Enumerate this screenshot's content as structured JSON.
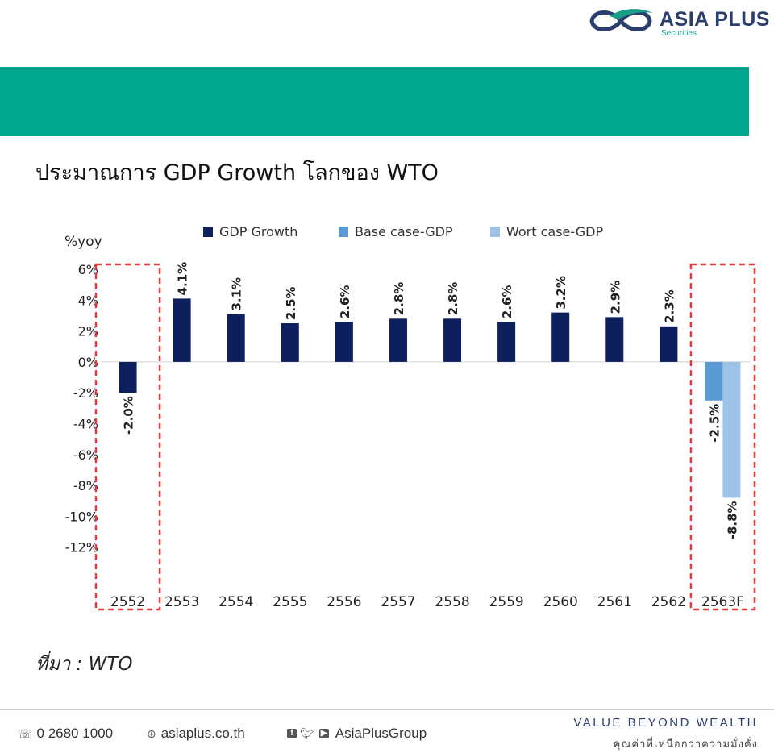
{
  "brand": {
    "name": "ASIA PLUS",
    "sub": "Securities",
    "band_color": "#00a78c",
    "navy": "#2c3e6e"
  },
  "title": "ประมาณการ GDP Growth โลกของ WTO",
  "source": "ที่มา : WTO",
  "footer": {
    "phone": "0 2680 1000",
    "website": "asiaplus.co.th",
    "social": "AsiaPlusGroup",
    "tagline": "VALUE BEYOND WEALTH",
    "tagline_sub": "คุณค่าที่เหนือกว่าความมั่งคั่ง"
  },
  "chart_data": {
    "type": "bar",
    "ylabel": "%yoy",
    "ylim": [
      -14,
      6
    ],
    "yticks": [
      6,
      4,
      2,
      0,
      -2,
      -4,
      -6,
      -8,
      -10,
      -12
    ],
    "ytick_labels": [
      "6%",
      "4%",
      "2%",
      "0%",
      "-2%",
      "-4%",
      "-6%",
      "-8%",
      "-10%",
      "-12%"
    ],
    "categories": [
      "2552",
      "2553",
      "2554",
      "2555",
      "2556",
      "2557",
      "2558",
      "2559",
      "2560",
      "2561",
      "2562",
      "2563F"
    ],
    "legend_position": "top",
    "series": [
      {
        "name": "GDP Growth",
        "color": "#0d1f5c",
        "values": [
          -2.0,
          4.1,
          3.1,
          2.5,
          2.6,
          2.8,
          2.8,
          2.6,
          3.2,
          2.9,
          2.3,
          null
        ],
        "labels": [
          "-2.0%",
          "4.1%",
          "3.1%",
          "2.5%",
          "2.6%",
          "2.8%",
          "2.8%",
          "2.6%",
          "3.2%",
          "2.9%",
          "2.3%",
          ""
        ]
      },
      {
        "name": "Base case-GDP",
        "color": "#5b9bd5",
        "values": [
          null,
          null,
          null,
          null,
          null,
          null,
          null,
          null,
          null,
          null,
          null,
          -2.5
        ],
        "labels": [
          "",
          "",
          "",
          "",
          "",
          "",
          "",
          "",
          "",
          "",
          "",
          "-2.5%"
        ]
      },
      {
        "name": "Wort case-GDP",
        "color": "#9dc3e6",
        "values": [
          null,
          null,
          null,
          null,
          null,
          null,
          null,
          null,
          null,
          null,
          null,
          -8.8
        ],
        "labels": [
          "",
          "",
          "",
          "",
          "",
          "",
          "",
          "",
          "",
          "",
          "",
          "-8.8%"
        ]
      }
    ],
    "highlight_boxes": [
      "2552",
      "2563F"
    ],
    "highlight_color": "#e03a3a"
  }
}
